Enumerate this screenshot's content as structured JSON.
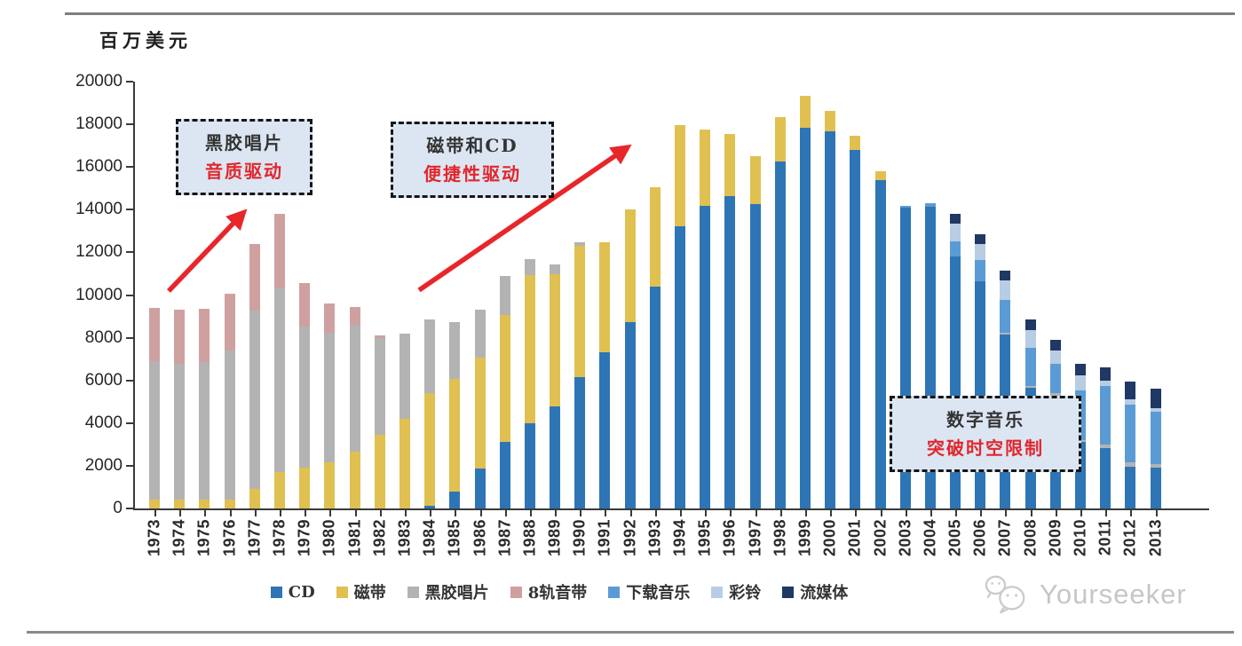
{
  "page": {
    "unit_label": "百万美元",
    "watermark_text": "Yourseeker"
  },
  "annotations": {
    "vinyl": {
      "line1": "黑胶唱片",
      "line2": "音质驱动"
    },
    "cassette": {
      "line1": "磁带和CD",
      "line2": "便捷性驱动"
    },
    "digital": {
      "line1": "数字音乐",
      "line2": "突破时空限制"
    }
  },
  "colors": {
    "arrow_red": "#e8262a",
    "annotation_bg": "#dce6f2",
    "axis": "#3a3a3a",
    "watermark_gray": "#c6c6c6"
  },
  "chart_data": {
    "type": "bar",
    "stacked": true,
    "title": "",
    "xlabel": "",
    "ylabel": "百万美元",
    "ylim": [
      0,
      20000
    ],
    "ytick_step": 2000,
    "grid": false,
    "legend_position": "bottom",
    "categories": [
      "1973",
      "1974",
      "1975",
      "1976",
      "1977",
      "1978",
      "1979",
      "1980",
      "1981",
      "1982",
      "1983",
      "1984",
      "1985",
      "1986",
      "1987",
      "1988",
      "1989",
      "1990",
      "1991",
      "1992",
      "1993",
      "1994",
      "1995",
      "1996",
      "1997",
      "1998",
      "1999",
      "2000",
      "2001",
      "2002",
      "2003",
      "2004",
      "2005",
      "2006",
      "2007",
      "2008",
      "2009",
      "2010",
      "2011",
      "2012",
      "2013"
    ],
    "series": [
      {
        "name": "CD",
        "color": "#2e75b6",
        "values": [
          0,
          0,
          0,
          0,
          0,
          0,
          0,
          0,
          0,
          0,
          0,
          120,
          800,
          1870,
          3120,
          4010,
          4770,
          6160,
          7330,
          8720,
          10390,
          13230,
          14200,
          14620,
          14270,
          16240,
          17830,
          17690,
          16810,
          15400,
          14100,
          14150,
          11800,
          10660,
          8140,
          5640,
          5290,
          3100,
          2850,
          1950,
          1900
        ]
      },
      {
        "name": "磁带",
        "color": "#e0c050",
        "values": [
          400,
          400,
          400,
          400,
          900,
          1700,
          1900,
          2160,
          2660,
          3450,
          4200,
          5300,
          5280,
          5200,
          5950,
          6930,
          6200,
          6140,
          5140,
          5280,
          4670,
          4740,
          3560,
          2910,
          2250,
          2080,
          1500,
          950,
          650,
          390,
          0,
          0,
          0,
          0,
          0,
          0,
          0,
          0,
          0,
          0,
          0
        ]
      },
      {
        "name": "黑胶唱片",
        "color": "#b3b3b3",
        "values": [
          6500,
          6400,
          6450,
          7000,
          8380,
          8660,
          6630,
          6080,
          5950,
          4550,
          4000,
          3430,
          2660,
          2250,
          1840,
          740,
          460,
          190,
          0,
          0,
          0,
          0,
          0,
          0,
          0,
          0,
          0,
          0,
          0,
          0,
          0,
          0,
          0,
          0,
          100,
          100,
          100,
          100,
          150,
          200,
          200
        ]
      },
      {
        "name": "8轨音带",
        "color": "#cfa0a0",
        "values": [
          2500,
          2500,
          2500,
          2650,
          3120,
          3440,
          2020,
          1360,
          840,
          100,
          0,
          0,
          0,
          0,
          0,
          0,
          0,
          0,
          0,
          0,
          0,
          0,
          0,
          0,
          0,
          0,
          0,
          0,
          0,
          0,
          0,
          0,
          0,
          0,
          0,
          0,
          0,
          0,
          0,
          0,
          0
        ]
      },
      {
        "name": "下载音乐",
        "color": "#5b9bd5",
        "values": [
          0,
          0,
          0,
          0,
          0,
          0,
          0,
          0,
          0,
          0,
          0,
          0,
          0,
          0,
          0,
          0,
          0,
          0,
          0,
          0,
          0,
          0,
          0,
          0,
          0,
          0,
          0,
          0,
          0,
          0,
          100,
          150,
          700,
          980,
          1530,
          1800,
          1390,
          2340,
          2750,
          2700,
          2450
        ]
      },
      {
        "name": "彩铃",
        "color": "#b8cce4",
        "values": [
          0,
          0,
          0,
          0,
          0,
          0,
          0,
          0,
          0,
          0,
          0,
          0,
          0,
          0,
          0,
          0,
          0,
          0,
          0,
          0,
          0,
          0,
          0,
          0,
          0,
          0,
          0,
          0,
          0,
          0,
          0,
          0,
          830,
          760,
          900,
          830,
          620,
          690,
          250,
          250,
          150
        ]
      },
      {
        "name": "流媒体",
        "color": "#1f3864",
        "values": [
          0,
          0,
          0,
          0,
          0,
          0,
          0,
          0,
          0,
          0,
          0,
          0,
          0,
          0,
          0,
          0,
          0,
          0,
          0,
          0,
          0,
          0,
          0,
          0,
          0,
          0,
          0,
          0,
          0,
          0,
          0,
          0,
          470,
          440,
          480,
          490,
          490,
          550,
          600,
          850,
          900
        ]
      }
    ]
  }
}
